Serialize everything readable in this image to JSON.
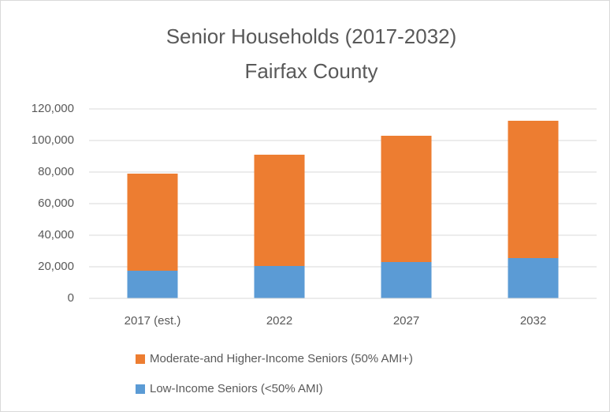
{
  "chart_data": {
    "type": "stacked_bar",
    "title": [
      "Senior Households (2017-2032)",
      "Fairfax County"
    ],
    "categories": [
      "2017 (est.)",
      "2022",
      "2027",
      "2032"
    ],
    "series": [
      {
        "name": "Low-Income Seniors (<50% AMI)",
        "color": "#5b9bd5",
        "values": [
          17500,
          20500,
          23000,
          25500
        ]
      },
      {
        "name": "Moderate-and Higher-Income Seniors (50% AMI+)",
        "color": "#ed7d31",
        "values": [
          61500,
          70500,
          80000,
          87000
        ]
      }
    ],
    "ylim": [
      0,
      120000
    ],
    "yticks": [
      0,
      {
        "value": 20000,
        "label": "20,000"
      },
      {
        "value": 40000,
        "label": "40,000"
      },
      {
        "value": 60000,
        "label": "60,000"
      },
      {
        "value": 80000,
        "label": "80,000"
      },
      {
        "value": 100000,
        "label": "100,000"
      },
      {
        "value": 120000,
        "label": "120,000"
      }
    ],
    "grid": true
  }
}
